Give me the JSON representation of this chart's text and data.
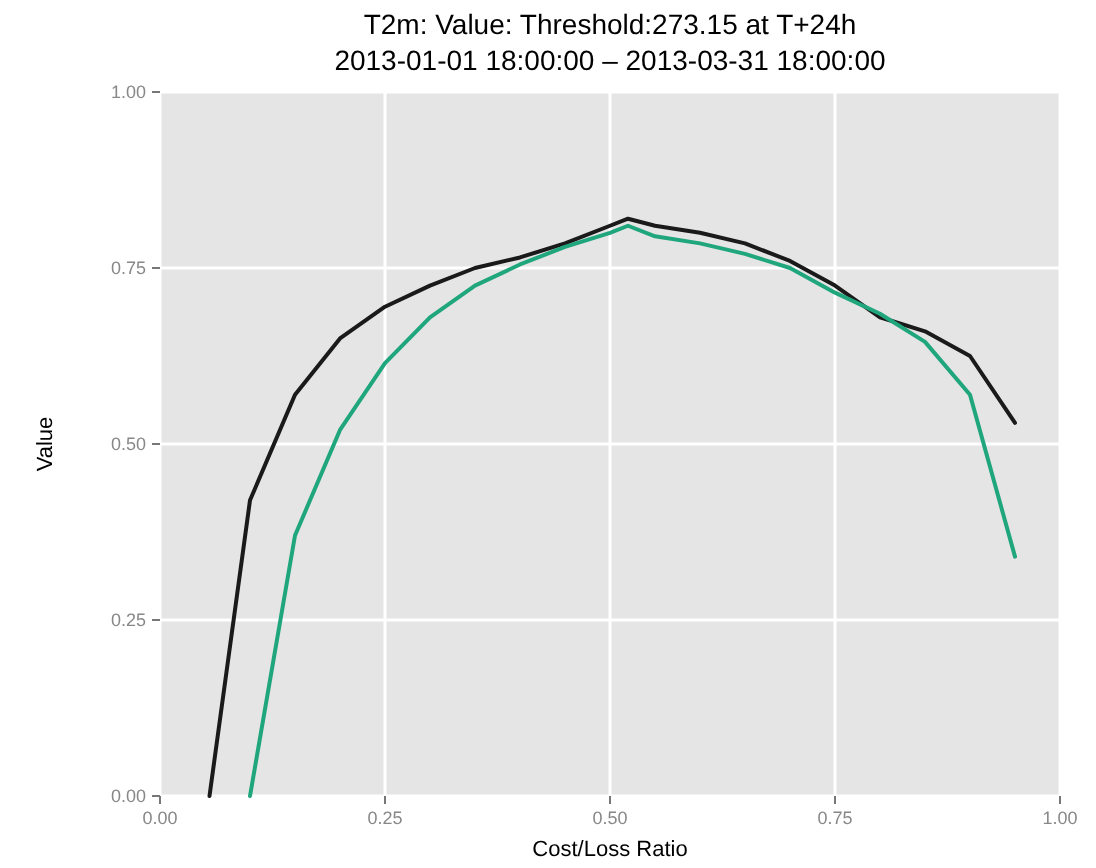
{
  "chart_data": {
    "type": "line",
    "title": "T2m: Value: Threshold:273.15 at T+24h",
    "subtitle": "2013-01-01 18:00:00 – 2013-03-31 18:00:00",
    "xlabel": "Cost/Loss Ratio",
    "ylabel": "Value",
    "xlim": [
      0,
      1
    ],
    "ylim": [
      0,
      1
    ],
    "xticks": [
      {
        "value": 0,
        "label": "0.00"
      },
      {
        "value": 0.25,
        "label": "0.25"
      },
      {
        "value": 0.5,
        "label": "0.50"
      },
      {
        "value": 0.75,
        "label": "0.75"
      },
      {
        "value": 1,
        "label": "1.00"
      }
    ],
    "yticks": [
      {
        "value": 0,
        "label": "0.00"
      },
      {
        "value": 0.25,
        "label": "0.25"
      },
      {
        "value": 0.5,
        "label": "0.50"
      },
      {
        "value": 0.75,
        "label": "0.75"
      },
      {
        "value": 1,
        "label": "1.00"
      }
    ],
    "grid": true,
    "line_style": "solid",
    "marker": "none",
    "series": [
      {
        "color": "#1a1a1a",
        "x": [
          0.055,
          0.1,
          0.15,
          0.2,
          0.25,
          0.3,
          0.35,
          0.4,
          0.45,
          0.5,
          0.52,
          0.55,
          0.6,
          0.65,
          0.7,
          0.75,
          0.8,
          0.85,
          0.9,
          0.95
        ],
        "values": [
          0,
          0.42,
          0.57,
          0.65,
          0.695,
          0.725,
          0.75,
          0.765,
          0.785,
          0.81,
          0.82,
          0.81,
          0.8,
          0.785,
          0.76,
          0.725,
          0.68,
          0.66,
          0.625,
          0.53
        ]
      },
      {
        "color": "#20a67c",
        "x": [
          0.1,
          0.15,
          0.2,
          0.25,
          0.3,
          0.35,
          0.4,
          0.45,
          0.5,
          0.52,
          0.55,
          0.6,
          0.65,
          0.7,
          0.75,
          0.8,
          0.85,
          0.9,
          0.95
        ],
        "values": [
          0,
          0.37,
          0.52,
          0.615,
          0.68,
          0.725,
          0.755,
          0.78,
          0.8,
          0.81,
          0.795,
          0.785,
          0.77,
          0.75,
          0.715,
          0.685,
          0.645,
          0.57,
          0.34
        ]
      }
    ]
  }
}
